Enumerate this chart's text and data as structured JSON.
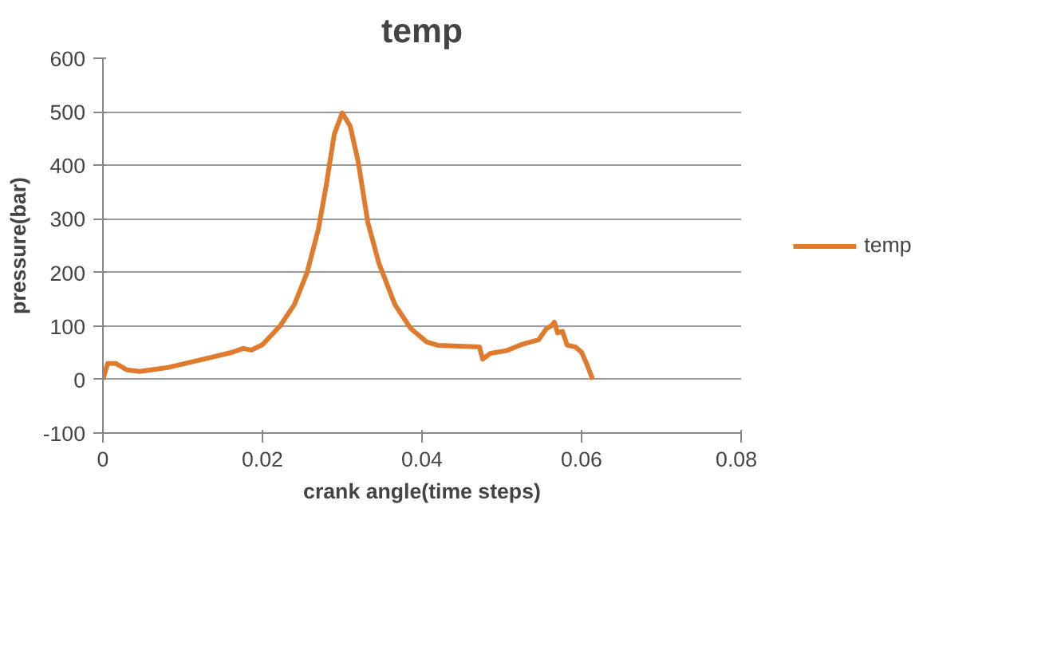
{
  "chart_data": {
    "type": "line",
    "title": "temp",
    "xlabel": "crank angle(time steps)",
    "ylabel": "pressure(bar)",
    "xlim": [
      0,
      0.08
    ],
    "xticks": [
      0,
      0.02,
      0.04,
      0.06,
      0.08
    ],
    "ylim": [
      -100,
      600
    ],
    "yticks": [
      -100,
      0,
      100,
      200,
      300,
      400,
      500,
      600
    ],
    "grid": "y",
    "legend": "right",
    "marker": "none",
    "line_style": "solid",
    "series": [
      {
        "name": "temp",
        "color": "#e07b2e",
        "x": [
          0,
          0.0006,
          0.0016,
          0.003,
          0.0046,
          0.008,
          0.0126,
          0.016,
          0.0176,
          0.0186,
          0.02,
          0.0222,
          0.024,
          0.0256,
          0.027,
          0.028,
          0.029,
          0.03,
          0.031,
          0.032,
          0.0332,
          0.0346,
          0.0366,
          0.0386,
          0.0406,
          0.042,
          0.0472,
          0.0476,
          0.0486,
          0.0506,
          0.0526,
          0.0546,
          0.0556,
          0.0562,
          0.0566,
          0.057,
          0.0576,
          0.0582,
          0.0592,
          0.06,
          0.0606,
          0.0614
        ],
        "values": [
          0,
          30,
          30,
          18,
          15,
          22,
          38,
          50,
          58,
          55,
          65,
          100,
          140,
          200,
          280,
          363,
          458,
          498,
          473,
          407,
          294,
          217,
          140,
          95,
          70,
          64,
          61,
          38,
          49,
          54,
          66,
          74,
          95,
          100,
          107,
          87,
          90,
          64,
          61,
          51,
          31,
          0
        ]
      }
    ]
  }
}
